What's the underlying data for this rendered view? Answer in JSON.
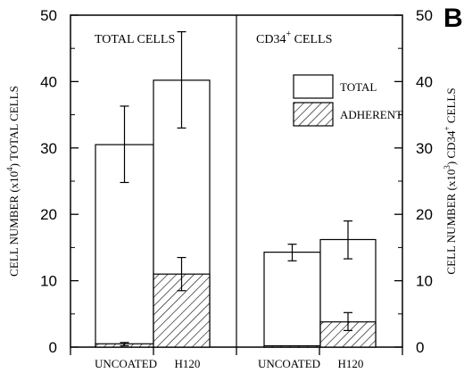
{
  "panel_letter": "B",
  "chart_data": {
    "type": "bar",
    "panels": [
      "TOTAL CELLS",
      "CD34+ CELLS"
    ],
    "panel_label_base": "CD34",
    "panel_label_sup": "+",
    "panel_label_rest": " CELLS",
    "categories": [
      "UNCOATED",
      "H120"
    ],
    "series": [
      {
        "name": "TOTAL",
        "panel_values": [
          [
            30.5,
            40.2
          ],
          [
            14.3,
            16.2
          ]
        ],
        "error_bars": [
          [
            [
              24.8,
              36.3
            ],
            [
              33.0,
              47.5
            ]
          ],
          [
            [
              13.0,
              15.5
            ],
            [
              13.3,
              19.0
            ]
          ]
        ]
      },
      {
        "name": "ADHERENT",
        "panel_values": [
          [
            0.5,
            11.0
          ],
          [
            0.0,
            3.8
          ]
        ],
        "error_bars": [
          [
            [
              0.2,
              0.7
            ],
            [
              8.5,
              13.5
            ]
          ],
          [
            [
              0.0,
              0.0
            ],
            [
              2.5,
              5.2
            ]
          ]
        ]
      }
    ],
    "ylim": [
      0,
      50
    ],
    "yticks": [
      0,
      10,
      20,
      30,
      40,
      50
    ],
    "ylabel_left": {
      "base": "CELL NUMBER (x10",
      "sup": "4",
      "rest": ") TOTAL CELLS"
    },
    "ylabel_right": {
      "base": "CELL NUMBER (x10",
      "sup": "3",
      "rest": ") CD34",
      "sup2": "+",
      "rest2": " CELLS"
    },
    "legend": [
      "TOTAL",
      "ADHERENT"
    ],
    "legend_position": "inside right panel, upper-middle",
    "grid": false
  }
}
